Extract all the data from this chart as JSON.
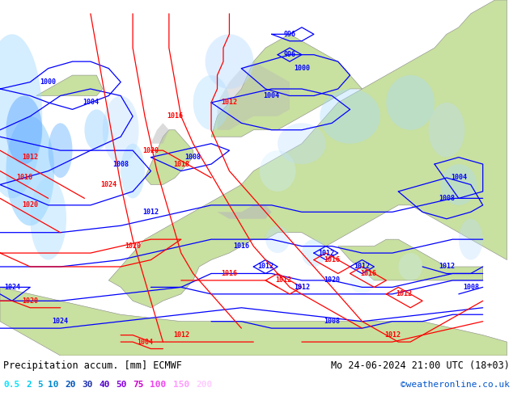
{
  "title_left": "Precipitation accum. [mm] ECMWF",
  "title_right": "Mo 24-06-2024 21:00 UTC (18+03)",
  "credit": "©weatheronline.co.uk",
  "legend_values": [
    "0.5",
    "2",
    "5",
    "10",
    "20",
    "30",
    "40",
    "50",
    "75",
    "100",
    "150",
    "200"
  ],
  "legend_colors": [
    "#00e5ff",
    "#00ccee",
    "#00aadd",
    "#0088cc",
    "#0055bb",
    "#2233aa",
    "#5500cc",
    "#8800dd",
    "#cc00cc",
    "#ee44ee",
    "#ff99ff",
    "#ffccff"
  ],
  "bg_color": "#ffffff",
  "land_color": "#c8e0a0",
  "sea_color": "#dce8f0",
  "map_bg": "#e8e8e8",
  "font_family": "monospace"
}
